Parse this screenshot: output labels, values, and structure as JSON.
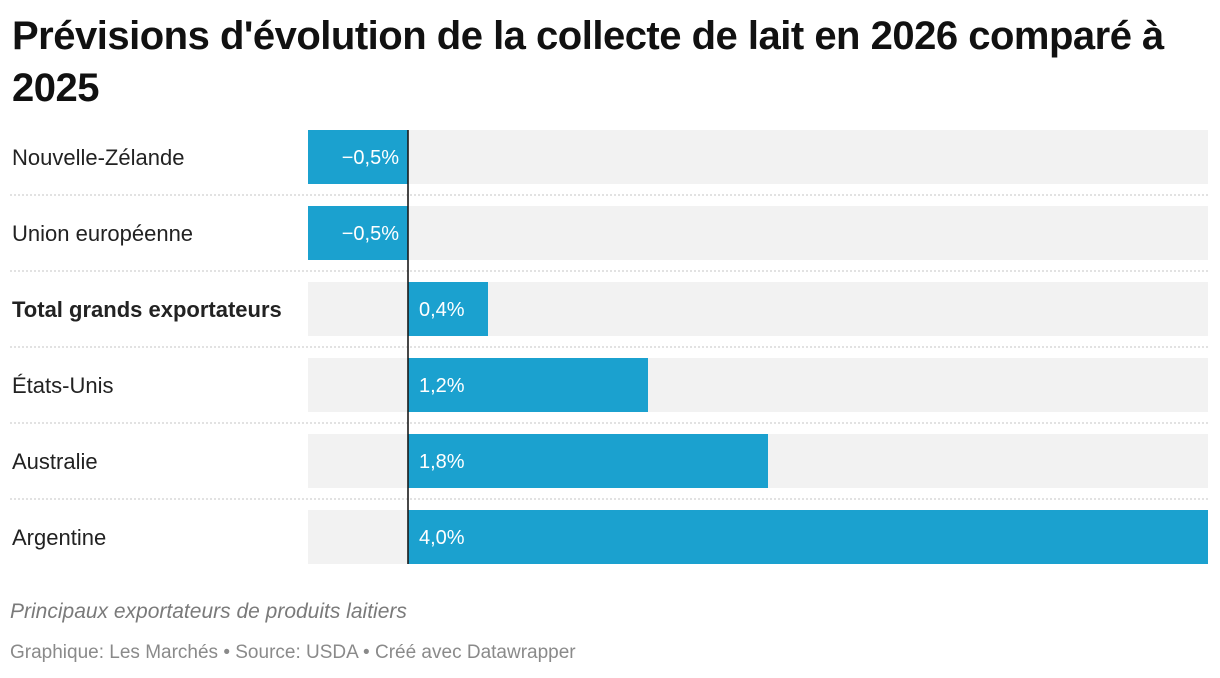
{
  "chart_data": {
    "type": "bar",
    "orientation": "horizontal",
    "title": "Prévisions d'évolution de la collecte de lait en 2026 comparé à 2025",
    "categories": [
      "Nouvelle-Zélande",
      "Union européenne",
      "Total grands exportateurs",
      "États-Unis",
      "Australie",
      "Argentine"
    ],
    "values": [
      -0.5,
      -0.5,
      0.4,
      1.2,
      1.8,
      4.0
    ],
    "value_labels": [
      "−0,5%",
      "−0,5%",
      "0,4%",
      "1,2%",
      "1,8%",
      "4,0%"
    ],
    "bold_categories": [
      "Total grands exportateurs"
    ],
    "xlim": [
      -0.5,
      4.0
    ],
    "grid": false,
    "bar_color": "#1ba1cf",
    "track_color": "#f2f2f2",
    "notes": "Principaux exportateurs de produits laitiers",
    "footer": "Graphique: Les Marchés • Source: USDA • Créé avec Datawrapper"
  }
}
